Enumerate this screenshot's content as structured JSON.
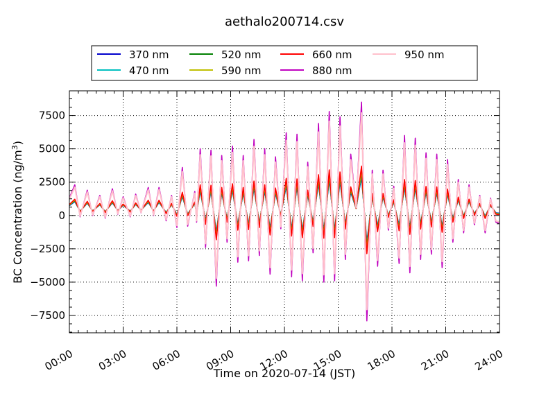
{
  "chart_data": {
    "type": "line",
    "title": "aethalo200714.csv",
    "xlabel": "Time on 2020-07-14 (JST)",
    "ylabel": "BC Concentration (ng/m",
    "ylabel_superscript": "3",
    "ylabel_suffix": ")",
    "xlim_hours": [
      0,
      24
    ],
    "ylim": [
      -8800,
      9350
    ],
    "x_ticks": [
      {
        "hour": 0,
        "label": "00:00"
      },
      {
        "hour": 3,
        "label": "03:00"
      },
      {
        "hour": 6,
        "label": "06:00"
      },
      {
        "hour": 9,
        "label": "09:00"
      },
      {
        "hour": 12,
        "label": "12:00"
      },
      {
        "hour": 15,
        "label": "15:00"
      },
      {
        "hour": 18,
        "label": "18:00"
      },
      {
        "hour": 21,
        "label": "21:00"
      },
      {
        "hour": 24,
        "label": "24:00"
      }
    ],
    "y_ticks": [
      {
        "value": -7500,
        "label": "−7500"
      },
      {
        "value": -5000,
        "label": "−5000"
      },
      {
        "value": -2500,
        "label": "−2500"
      },
      {
        "value": 0,
        "label": "0"
      },
      {
        "value": 2500,
        "label": "2500"
      },
      {
        "value": 5000,
        "label": "5000"
      },
      {
        "value": 7500,
        "label": "7500"
      }
    ],
    "grid": true,
    "grid_style": "dotted",
    "legend_position": "top-center-outside",
    "legend_columns": 4,
    "series": [
      {
        "name": "370 nm",
        "color": "#0000cc",
        "scale": 0.3
      },
      {
        "name": "470 nm",
        "color": "#00bfbf",
        "scale": 0.32
      },
      {
        "name": "520 nm",
        "color": "#007f00",
        "scale": 0.34
      },
      {
        "name": "590 nm",
        "color": "#bfbf00",
        "scale": 0.36
      },
      {
        "name": "660 nm",
        "color": "#ff0000",
        "scale": 0.4
      },
      {
        "name": "880 nm",
        "color": "#bf00bf",
        "scale": 1.0
      },
      {
        "name": "950 nm",
        "color": "#ffc0cb",
        "scale": 0.9
      }
    ],
    "envelope_880nm": {
      "hours": [
        0,
        0.3,
        0.6,
        1.0,
        1.3,
        1.7,
        2.0,
        2.4,
        2.7,
        3.0,
        3.4,
        3.7,
        4.0,
        4.4,
        4.7,
        5.0,
        5.4,
        5.7,
        6.0,
        6.3,
        6.6,
        7.0,
        7.1,
        7.3,
        7.6,
        7.9,
        8.2,
        8.5,
        8.8,
        9.1,
        9.4,
        9.7,
        10.0,
        10.3,
        10.6,
        10.9,
        11.2,
        11.5,
        11.8,
        12.1,
        12.4,
        12.7,
        13.0,
        13.3,
        13.6,
        13.9,
        14.2,
        14.5,
        14.8,
        15.1,
        15.4,
        15.7,
        16.0,
        16.3,
        16.6,
        16.9,
        17.2,
        17.5,
        17.8,
        18.1,
        18.4,
        18.7,
        19.0,
        19.3,
        19.6,
        19.9,
        20.2,
        20.5,
        20.8,
        21.1,
        21.4,
        21.7,
        22.0,
        22.3,
        22.6,
        22.9,
        23.2,
        23.5,
        23.8,
        24.0
      ],
      "values": [
        1300,
        2300,
        -100,
        1900,
        0,
        1500,
        -200,
        2000,
        100,
        1400,
        -100,
        1600,
        200,
        2100,
        0,
        2100,
        -400,
        1500,
        -900,
        3600,
        -800,
        1800,
        -500,
        5000,
        -2400,
        4900,
        -5300,
        4500,
        -2000,
        5200,
        -3500,
        4500,
        -3400,
        5700,
        -3000,
        5000,
        -4400,
        4400,
        -1000,
        6200,
        -4600,
        6100,
        -4900,
        4000,
        -2800,
        6900,
        -5000,
        7800,
        -4900,
        7400,
        -3300,
        4600,
        600,
        8500,
        -7900,
        3400,
        -3800,
        3400,
        -1100,
        2200,
        -3600,
        6000,
        -4300,
        5800,
        -3300,
        4700,
        -2900,
        4600,
        -3900,
        4200,
        -2000,
        2700,
        -1300,
        2300,
        -700,
        1500,
        -1300,
        1300,
        -500,
        -600
      ]
    }
  }
}
